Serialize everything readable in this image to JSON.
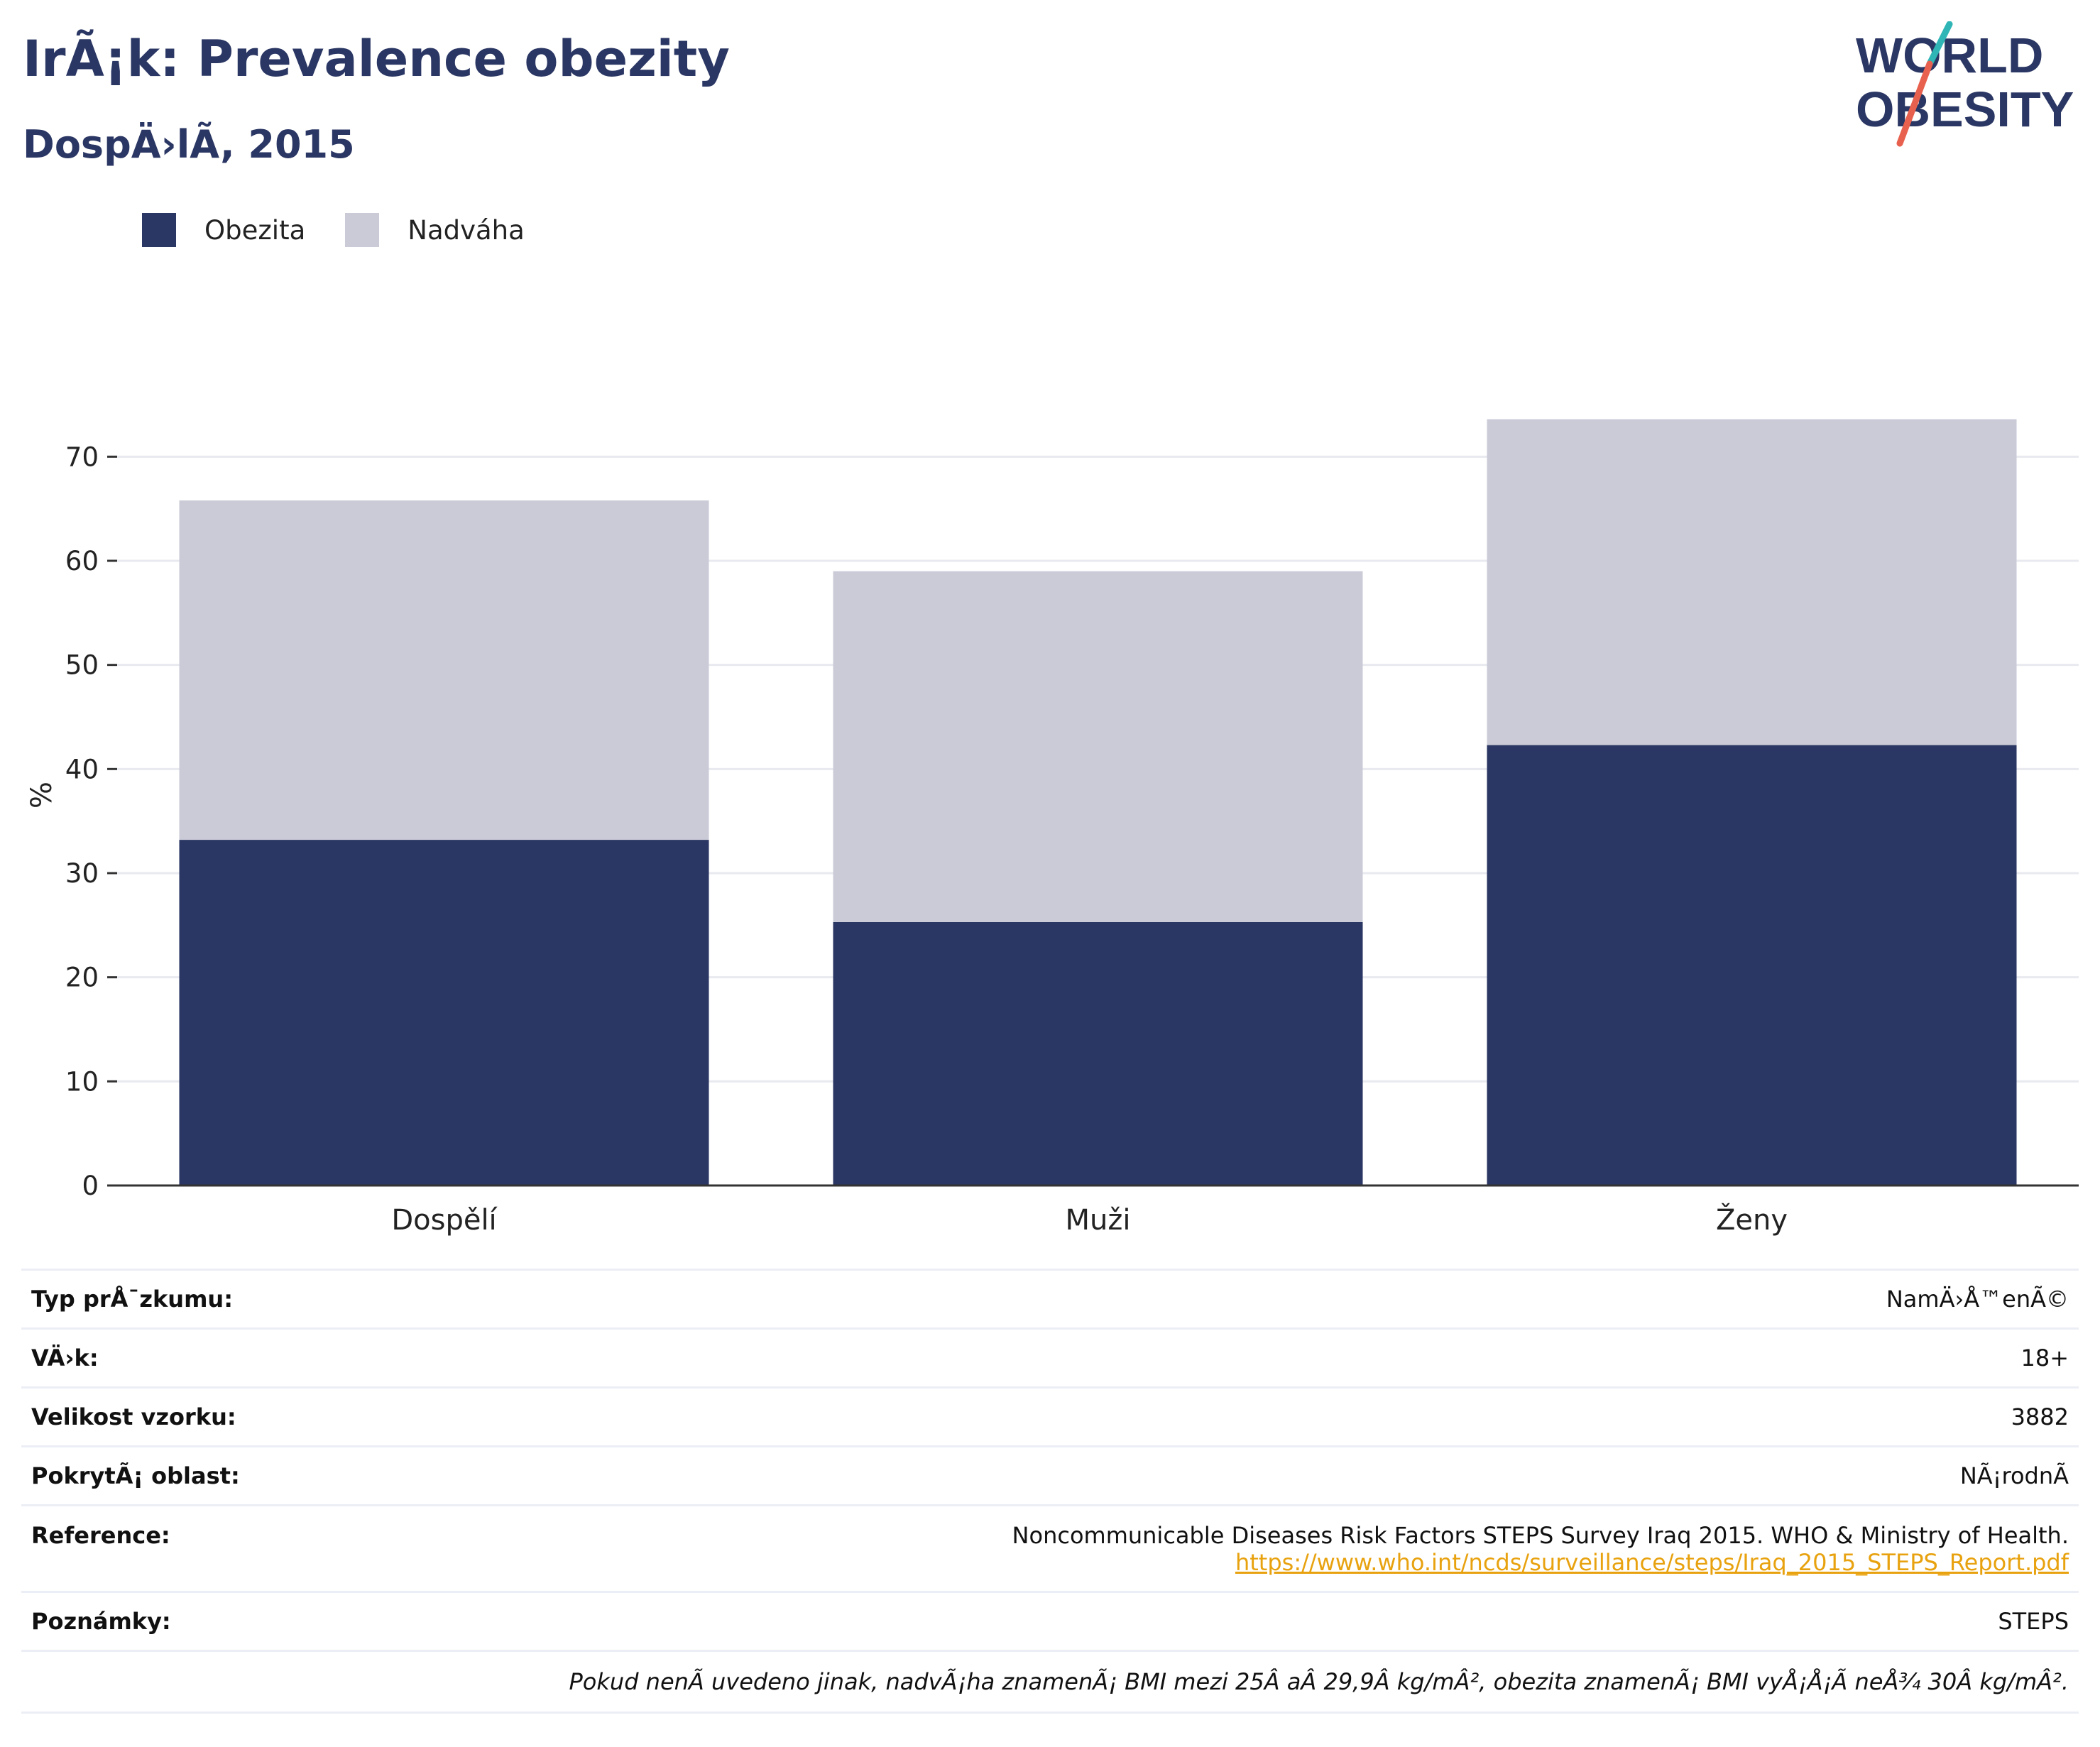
{
  "header": {
    "title": "IrÃ¡k: Prevalence obezity",
    "subtitle": "DospÄ›lÃ, 2015"
  },
  "logo": {
    "line1": "WORLD",
    "line2": "OBESITY",
    "text_color": "#2a3663",
    "slash_top_color": "#2fb5b5",
    "slash_bottom_color": "#e8614f"
  },
  "colors": {
    "obesity": "#2a3663",
    "overweight": "#cacbd7",
    "grid": "#e8eaf0",
    "axis": "#333333"
  },
  "legend": {
    "items": [
      {
        "label": "Obezita",
        "color": "#2a3663"
      },
      {
        "label": "Nadváha",
        "color": "#cacbd7"
      }
    ],
    "placement": "top-left"
  },
  "chart_data": {
    "type": "bar",
    "stacked": true,
    "categories": [
      "Dospělí",
      "Muži",
      "Ženy"
    ],
    "series": [
      {
        "name": "Obezita",
        "values": [
          33.2,
          25.3,
          42.3
        ]
      },
      {
        "name": "Nadváha",
        "values": [
          32.6,
          33.7,
          31.3
        ]
      }
    ],
    "title": "IrÃ¡k: Prevalence obezity",
    "subtitle": "DospÄ›lÃ, 2015",
    "xlabel": "",
    "ylabel": "%",
    "ylim": [
      0,
      75
    ],
    "yticks": [
      0,
      10,
      20,
      30,
      40,
      50,
      60,
      70
    ],
    "grid": true
  },
  "info": {
    "survey_type_label": "Typ prÅ¯zkumu:",
    "survey_type_value": "NamÄ›Å™enÃ©",
    "age_label": "VÄ›k:",
    "age_value": "18+",
    "sample_label": "Velikost vzorku:",
    "sample_value": "3882",
    "area_label": "PokrytÃ¡ oblast:",
    "area_value": "NÃ¡rodnÃ",
    "reference_label": "Reference:",
    "reference_text": "Noncommunicable Diseases Risk Factors STEPS Survey Iraq 2015. WHO & Ministry of Health.",
    "reference_link": "https://www.who.int/ncds/surveillance/steps/Iraq_2015_STEPS_Report.pdf",
    "notes_label": "Poznámky:",
    "notes_value": "STEPS",
    "footnote": "Pokud nenÃ uvedeno jinak, nadvÃ¡ha znamenÃ¡ BMI mezi 25Â aÂ 29,9Â kg/mÂ², obezita znamenÃ¡ BMI vyÅ¡Å¡Ã neÅ¾ 30Â kg/mÂ²."
  }
}
